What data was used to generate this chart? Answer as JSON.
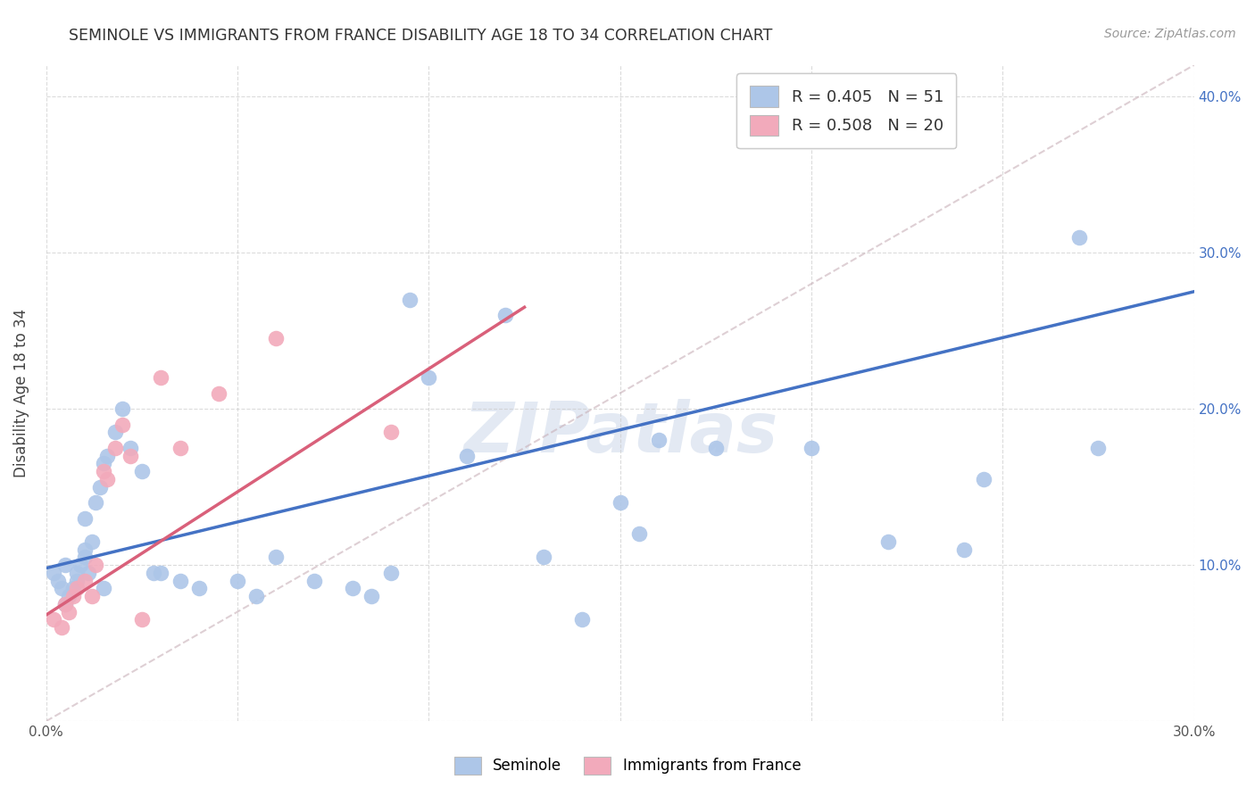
{
  "title": "SEMINOLE VS IMMIGRANTS FROM FRANCE DISABILITY AGE 18 TO 34 CORRELATION CHART",
  "source": "Source: ZipAtlas.com",
  "ylabel": "Disability Age 18 to 34",
  "xlim": [
    0.0,
    0.3
  ],
  "ylim": [
    0.0,
    0.42
  ],
  "xticks": [
    0.0,
    0.05,
    0.1,
    0.15,
    0.2,
    0.25,
    0.3
  ],
  "yticks": [
    0.0,
    0.1,
    0.2,
    0.3,
    0.4
  ],
  "xtick_labels": [
    "0.0%",
    "",
    "",
    "",
    "",
    "",
    "30.0%"
  ],
  "ytick_labels_right": [
    "",
    "10.0%",
    "20.0%",
    "30.0%",
    "40.0%"
  ],
  "legend_blue_label": "R = 0.405   N = 51",
  "legend_pink_label": "R = 0.508   N = 20",
  "legend_bottom_blue": "Seminole",
  "legend_bottom_pink": "Immigrants from France",
  "blue_color": "#adc6e8",
  "pink_color": "#f2aabb",
  "blue_line_color": "#4472c4",
  "pink_line_color": "#d9607a",
  "diag_line_color": "#c8b0b8",
  "watermark": "ZIPatlas",
  "blue_line_x0": 0.0,
  "blue_line_y0": 0.098,
  "blue_line_x1": 0.3,
  "blue_line_y1": 0.275,
  "pink_line_x0": 0.0,
  "pink_line_y0": 0.068,
  "pink_line_x1": 0.125,
  "pink_line_y1": 0.265,
  "seminole_x": [
    0.002,
    0.003,
    0.004,
    0.005,
    0.005,
    0.006,
    0.007,
    0.008,
    0.008,
    0.009,
    0.01,
    0.01,
    0.01,
    0.011,
    0.012,
    0.013,
    0.014,
    0.015,
    0.015,
    0.016,
    0.018,
    0.02,
    0.022,
    0.025,
    0.028,
    0.03,
    0.035,
    0.04,
    0.05,
    0.055,
    0.06,
    0.07,
    0.08,
    0.085,
    0.09,
    0.095,
    0.1,
    0.11,
    0.12,
    0.13,
    0.14,
    0.15,
    0.155,
    0.16,
    0.175,
    0.2,
    0.22,
    0.24,
    0.245,
    0.27,
    0.275
  ],
  "seminole_y": [
    0.095,
    0.09,
    0.085,
    0.1,
    0.075,
    0.08,
    0.085,
    0.09,
    0.095,
    0.1,
    0.105,
    0.11,
    0.13,
    0.095,
    0.115,
    0.14,
    0.15,
    0.085,
    0.165,
    0.17,
    0.185,
    0.2,
    0.175,
    0.16,
    0.095,
    0.095,
    0.09,
    0.085,
    0.09,
    0.08,
    0.105,
    0.09,
    0.085,
    0.08,
    0.095,
    0.27,
    0.22,
    0.17,
    0.26,
    0.105,
    0.065,
    0.14,
    0.12,
    0.18,
    0.175,
    0.175,
    0.115,
    0.11,
    0.155,
    0.31,
    0.175
  ],
  "france_x": [
    0.002,
    0.004,
    0.005,
    0.006,
    0.007,
    0.008,
    0.01,
    0.012,
    0.013,
    0.015,
    0.016,
    0.018,
    0.02,
    0.022,
    0.025,
    0.03,
    0.035,
    0.045,
    0.06,
    0.09
  ],
  "france_y": [
    0.065,
    0.06,
    0.075,
    0.07,
    0.08,
    0.085,
    0.09,
    0.08,
    0.1,
    0.16,
    0.155,
    0.175,
    0.19,
    0.17,
    0.065,
    0.22,
    0.175,
    0.21,
    0.245,
    0.185
  ]
}
